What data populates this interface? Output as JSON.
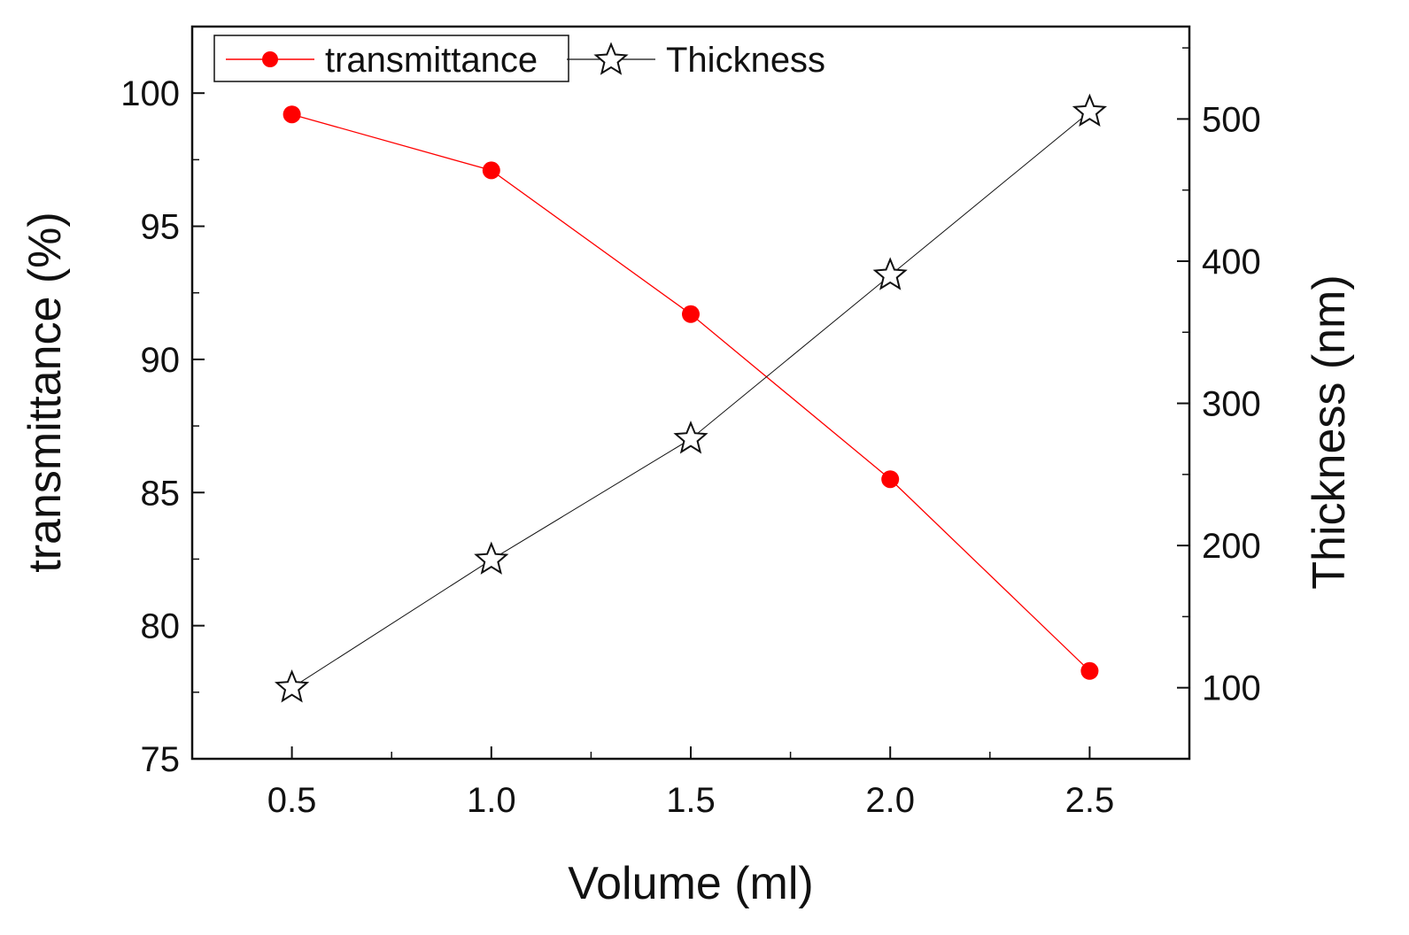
{
  "chart_data": {
    "type": "line",
    "title": "",
    "xlabel": "Volume (ml)",
    "ylabel_left": "transmittance (%)",
    "ylabel_right": "Thickness (nm)",
    "xlim": [
      0.25,
      2.75
    ],
    "ylim_left": [
      75,
      102.5
    ],
    "ylim_right": [
      50,
      565
    ],
    "x_ticks": [
      0.5,
      1.0,
      1.5,
      2.0,
      2.5
    ],
    "x_tick_labels": [
      "0.5",
      "1.0",
      "1.5",
      "2.0",
      "2.5"
    ],
    "y_left_ticks": [
      75,
      80,
      85,
      90,
      95,
      100
    ],
    "y_left_tick_labels": [
      "75",
      "80",
      "85",
      "90",
      "95",
      "100"
    ],
    "y_right_ticks": [
      100,
      200,
      300,
      400,
      500
    ],
    "y_right_tick_labels": [
      "100",
      "200",
      "300",
      "400",
      "500"
    ],
    "x": [
      0.5,
      1.0,
      1.5,
      2.0,
      2.5
    ],
    "series": [
      {
        "name": "transmittance",
        "axis": "left",
        "marker": "circle",
        "color": "#ff0000",
        "values": [
          99.2,
          97.1,
          91.7,
          85.5,
          78.3
        ]
      },
      {
        "name": "Thickness",
        "axis": "right",
        "marker": "star",
        "color": "#111111",
        "values": [
          100,
          190,
          275,
          390,
          505
        ]
      }
    ],
    "legend_position": "top-left",
    "grid": false
  }
}
